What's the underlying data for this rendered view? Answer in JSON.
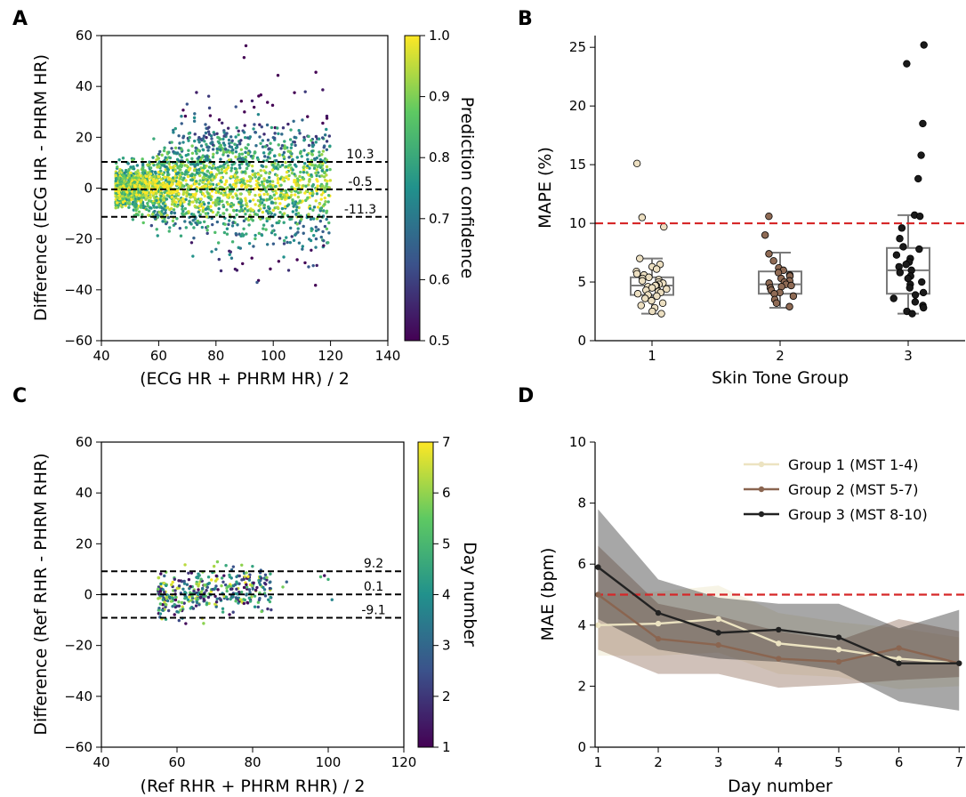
{
  "chart_data": [
    {
      "panel": "A",
      "type": "scatter",
      "xlabel": "(ECG HR + PHRM HR) / 2",
      "ylabel": "Difference (ECG HR - PHRM HR)",
      "xlim": [
        40,
        140
      ],
      "ylim": [
        -60,
        60
      ],
      "xticks": [
        "40",
        "60",
        "80",
        "100",
        "120",
        "140"
      ],
      "yticks": [
        "−60",
        "−40",
        "−20",
        "0",
        "20",
        "40",
        "60"
      ],
      "reference_lines": [
        {
          "y": 10.3,
          "label": "10.3"
        },
        {
          "y": -0.5,
          "label": "-0.5"
        },
        {
          "y": -11.3,
          "label": "-11.3"
        }
      ],
      "colorbar": {
        "label": "Prediction confidence",
        "min": 0.5,
        "max": 1.0,
        "ticks": [
          "0.5",
          "0.6",
          "0.7",
          "0.8",
          "0.9",
          "1.0"
        ]
      },
      "point_cloud_summary": {
        "x_range": [
          45,
          125
        ],
        "center_y": 0,
        "max_y": 56,
        "min_y": -52,
        "approx_points": 20000
      }
    },
    {
      "panel": "B",
      "type": "box",
      "xlabel": "Skin Tone Group",
      "ylabel": "MAPE (%)",
      "categories": [
        "1",
        "2",
        "3"
      ],
      "ylim": [
        0,
        26
      ],
      "yticks": [
        "0",
        "5",
        "10",
        "15",
        "20",
        "25"
      ],
      "threshold": 10,
      "boxes": [
        {
          "q1": 3.9,
          "median": 4.7,
          "q3": 5.4,
          "whisker_low": 2.3,
          "whisker_high": 7.0,
          "color": "#ecdfc1",
          "points": [
            15.1,
            10.5,
            9.7,
            7.0,
            6.5,
            6.3,
            6.1,
            5.9,
            5.7,
            5.6,
            5.4,
            5.3,
            5.2,
            5.1,
            5.0,
            4.9,
            4.8,
            4.7,
            4.7,
            4.6,
            4.5,
            4.4,
            4.3,
            4.2,
            4.1,
            4.0,
            3.9,
            3.8,
            3.6,
            3.4,
            3.2,
            3.0,
            2.8,
            2.5,
            2.3
          ]
        },
        {
          "q1": 4.0,
          "median": 4.8,
          "q3": 5.9,
          "whisker_low": 2.8,
          "whisker_high": 7.5,
          "color": "#8f6b55",
          "points": [
            10.6,
            9.0,
            7.4,
            6.8,
            6.2,
            6.0,
            5.8,
            5.6,
            5.5,
            5.3,
            5.1,
            5.0,
            4.9,
            4.8,
            4.7,
            4.6,
            4.5,
            4.3,
            4.1,
            4.0,
            3.8,
            3.5,
            3.2,
            2.9
          ]
        },
        {
          "q1": 4.0,
          "median": 6.0,
          "q3": 7.9,
          "whisker_low": 2.3,
          "whisker_high": 10.7,
          "color": "#1a1a1a",
          "points": [
            25.2,
            23.6,
            18.5,
            15.8,
            13.8,
            10.7,
            10.6,
            9.6,
            8.7,
            8.0,
            7.8,
            7.3,
            7.0,
            6.7,
            6.5,
            6.3,
            6.0,
            5.8,
            5.5,
            5.3,
            5.0,
            4.8,
            4.5,
            4.1,
            3.9,
            3.6,
            3.3,
            3.0,
            2.8,
            2.5,
            2.3
          ]
        }
      ]
    },
    {
      "panel": "C",
      "type": "scatter",
      "xlabel": "(Ref RHR + PHRM RHR) / 2",
      "ylabel": "Difference (Ref RHR - PHRM RHR)",
      "xlim": [
        40,
        120
      ],
      "ylim": [
        -60,
        60
      ],
      "xticks": [
        "40",
        "60",
        "80",
        "100",
        "120"
      ],
      "yticks": [
        "−60",
        "−40",
        "−20",
        "0",
        "20",
        "40",
        "60"
      ],
      "reference_lines": [
        {
          "y": 9.2,
          "label": "9.2"
        },
        {
          "y": 0.1,
          "label": "0.1"
        },
        {
          "y": -9.1,
          "label": "-9.1"
        }
      ],
      "colorbar": {
        "label": "Day number",
        "min": 1,
        "max": 7,
        "ticks": [
          "1",
          "2",
          "3",
          "4",
          "5",
          "6",
          "7"
        ]
      },
      "point_cloud_summary": {
        "x_range": [
          54,
          101
        ],
        "center_y": 0,
        "max_y": 19,
        "min_y": -16,
        "approx_points": 400
      }
    },
    {
      "panel": "D",
      "type": "line",
      "xlabel": "Day number",
      "ylabel": "MAE (bpm)",
      "x": [
        1,
        2,
        3,
        4,
        5,
        6,
        7
      ],
      "xlim": [
        0.95,
        7.1
      ],
      "ylim": [
        0,
        10
      ],
      "yticks": [
        "0",
        "2",
        "4",
        "6",
        "8",
        "10"
      ],
      "threshold": 5,
      "legend_position": "top-right",
      "series": [
        {
          "name": "Group 1 (MST 1-4)",
          "color": "#ece3c1",
          "values": [
            4.0,
            4.05,
            4.2,
            3.4,
            3.2,
            2.9,
            2.75
          ],
          "lower": [
            3.0,
            3.0,
            3.1,
            2.4,
            2.3,
            1.9,
            2.0
          ],
          "upper": [
            5.0,
            5.1,
            5.3,
            4.4,
            4.1,
            3.9,
            3.6
          ]
        },
        {
          "name": "Group 2 (MST 5-7)",
          "color": "#8a6550",
          "values": [
            5.0,
            3.55,
            3.35,
            2.9,
            2.8,
            3.25,
            2.75
          ],
          "lower": [
            3.2,
            2.4,
            2.4,
            1.95,
            2.05,
            2.2,
            2.3
          ],
          "upper": [
            6.6,
            4.7,
            4.3,
            3.8,
            3.5,
            4.2,
            3.8
          ]
        },
        {
          "name": "Group 3 (MST 8-10)",
          "color": "#222222",
          "values": [
            5.9,
            4.4,
            3.75,
            3.85,
            3.6,
            2.75,
            2.75
          ],
          "lower": [
            4.2,
            3.2,
            2.9,
            2.8,
            2.5,
            1.5,
            1.2
          ],
          "upper": [
            7.8,
            5.5,
            4.9,
            4.7,
            4.7,
            3.9,
            4.5
          ]
        }
      ]
    }
  ]
}
